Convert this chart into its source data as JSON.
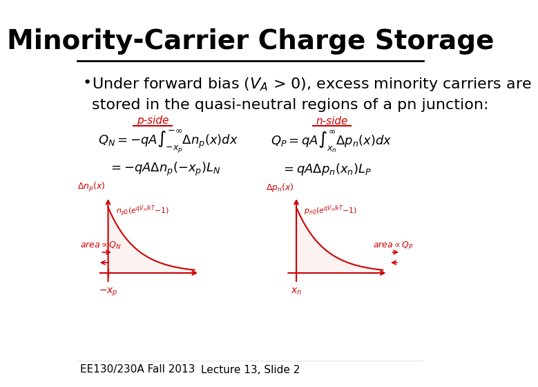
{
  "title": "Minority-Carrier Charge Storage",
  "bullet": "Under forward bias (Vₐ > 0), excess minority carriers are\nstored in the quasi-neutral regions of a pn junction:",
  "footer_left": "EE130/230A Fall 2013",
  "footer_center": "Lecture 13, Slide 2",
  "bg_color": "#ffffff",
  "title_color": "#000000",
  "body_color": "#000000",
  "red_color": "#cc0000",
  "title_fontsize": 28,
  "bullet_fontsize": 16,
  "footer_fontsize": 11
}
